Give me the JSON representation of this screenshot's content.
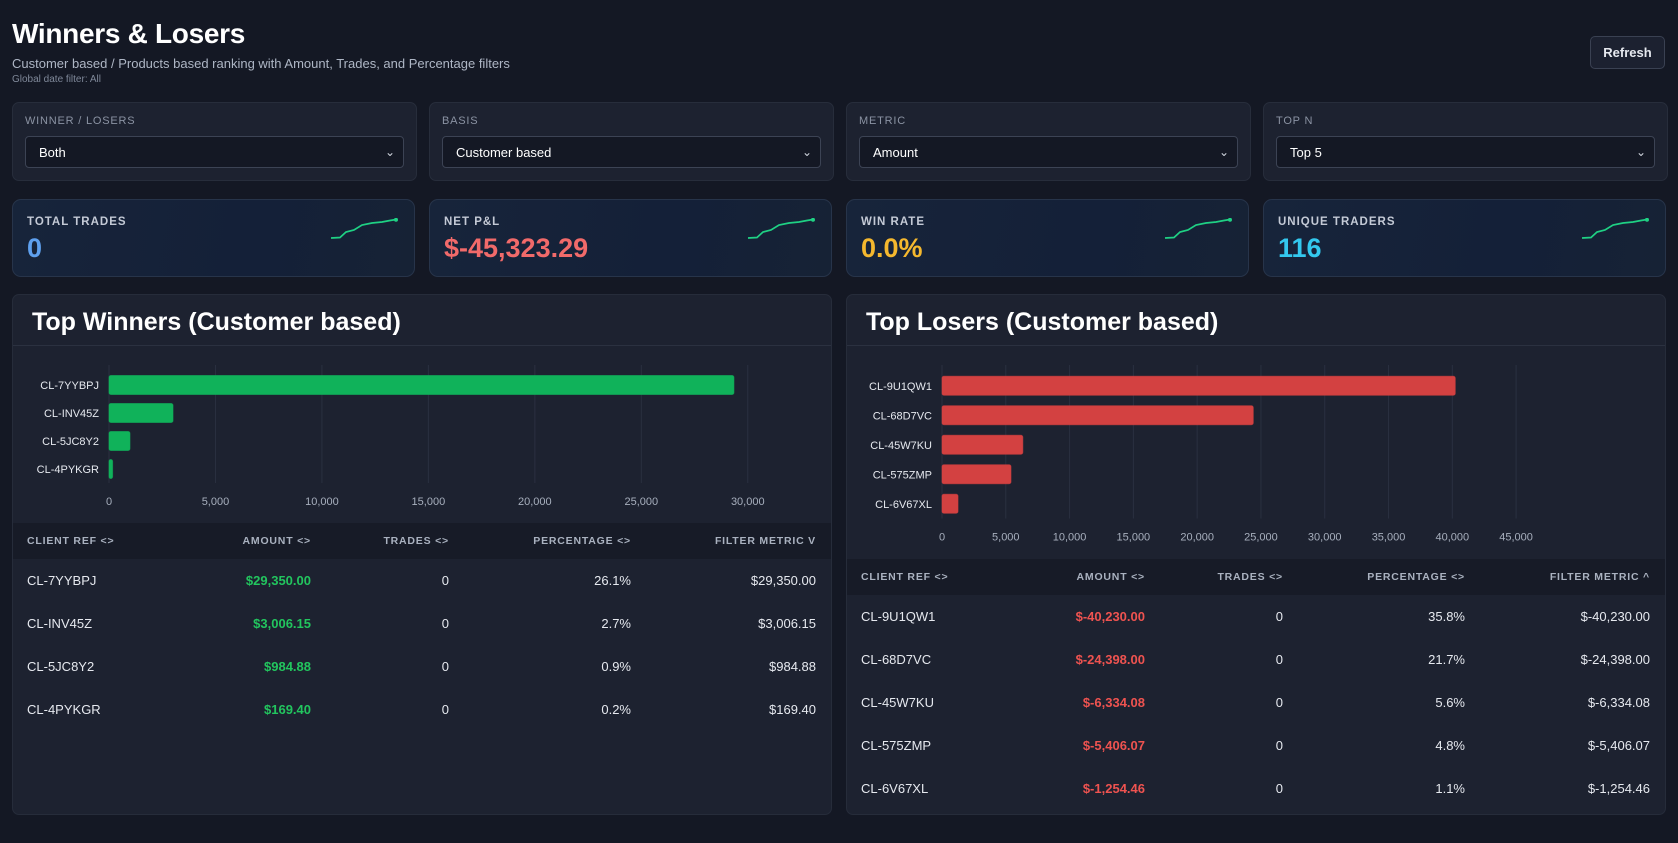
{
  "header": {
    "title": "Winners & Losers",
    "subtitle": "Customer based / Products based ranking with Amount, Trades, and Percentage filters",
    "date_filter": "Global date filter: All",
    "refresh_label": "Refresh"
  },
  "filters": [
    {
      "label": "WINNER / LOSERS",
      "value": "Both"
    },
    {
      "label": "BASIS",
      "value": "Customer based"
    },
    {
      "label": "METRIC",
      "value": "Amount"
    },
    {
      "label": "TOP N",
      "value": "Top 5"
    }
  ],
  "kpis": [
    {
      "label": "TOTAL TRADES",
      "value": "0",
      "color": "#5ea0ee"
    },
    {
      "label": "NET P&L",
      "value": "$-45,323.29",
      "color": "#f16a6a"
    },
    {
      "label": "WIN RATE",
      "value": "0.0%",
      "color": "#f5b82e"
    },
    {
      "label": "UNIQUE TRADERS",
      "value": "116",
      "color": "#33c8ee"
    }
  ],
  "colors": {
    "positive": "#22c55e",
    "negative": "#ef5350",
    "bar_green": "#10b25a",
    "bar_red": "#d34141",
    "sparkline": "#1fd184"
  },
  "winners": {
    "title": "Top Winners (Customer based)",
    "columns": [
      "CLIENT REF <>",
      "AMOUNT <>",
      "TRADES <>",
      "PERCENTAGE <>",
      "FILTER METRIC V"
    ],
    "rows": [
      {
        "client": "CL-7YYBPJ",
        "amount": "$29,350.00",
        "trades": "0",
        "percentage": "26.1%",
        "metric": "$29,350.00"
      },
      {
        "client": "CL-INV45Z",
        "amount": "$3,006.15",
        "trades": "0",
        "percentage": "2.7%",
        "metric": "$3,006.15"
      },
      {
        "client": "CL-5JC8Y2",
        "amount": "$984.88",
        "trades": "0",
        "percentage": "0.9%",
        "metric": "$984.88"
      },
      {
        "client": "CL-4PYKGR",
        "amount": "$169.40",
        "trades": "0",
        "percentage": "0.2%",
        "metric": "$169.40"
      }
    ]
  },
  "losers": {
    "title": "Top Losers (Customer based)",
    "columns": [
      "CLIENT REF <>",
      "AMOUNT <>",
      "TRADES <>",
      "PERCENTAGE <>",
      "FILTER METRIC ^"
    ],
    "rows": [
      {
        "client": "CL-9U1QW1",
        "amount": "$-40,230.00",
        "trades": "0",
        "percentage": "35.8%",
        "metric": "$-40,230.00"
      },
      {
        "client": "CL-68D7VC",
        "amount": "$-24,398.00",
        "trades": "0",
        "percentage": "21.7%",
        "metric": "$-24,398.00"
      },
      {
        "client": "CL-45W7KU",
        "amount": "$-6,334.08",
        "trades": "0",
        "percentage": "5.6%",
        "metric": "$-6,334.08"
      },
      {
        "client": "CL-575ZMP",
        "amount": "$-5,406.07",
        "trades": "0",
        "percentage": "4.8%",
        "metric": "$-5,406.07"
      },
      {
        "client": "CL-6V67XL",
        "amount": "$-1,254.46",
        "trades": "0",
        "percentage": "1.1%",
        "metric": "$-1,254.46"
      }
    ]
  },
  "chart_data": [
    {
      "type": "bar",
      "orientation": "horizontal",
      "categories": [
        "CL-7YYBPJ",
        "CL-INV45Z",
        "CL-5JC8Y2",
        "CL-4PYKGR"
      ],
      "values": [
        29350,
        3006.15,
        984.88,
        169.4
      ],
      "xlim": [
        0,
        32500
      ],
      "xticks": [
        0,
        5000,
        10000,
        15000,
        20000,
        25000,
        30000
      ],
      "xtick_labels": [
        "0",
        "5,000",
        "10,000",
        "15,000",
        "20,000",
        "25,000",
        "30,000"
      ],
      "grid": true
    },
    {
      "type": "bar",
      "orientation": "horizontal",
      "categories": [
        "CL-9U1QW1",
        "CL-68D7VC",
        "CL-45W7KU",
        "CL-575ZMP",
        "CL-6V67XL"
      ],
      "values": [
        40230,
        24398,
        6334.08,
        5406.07,
        1254.46
      ],
      "xlim": [
        0,
        47500
      ],
      "xticks": [
        0,
        5000,
        10000,
        15000,
        20000,
        25000,
        30000,
        35000,
        40000,
        45000
      ],
      "xtick_labels": [
        "0",
        "5,000",
        "10,000",
        "15,000",
        "20,000",
        "25,000",
        "30,000",
        "35,000",
        "40,000",
        "45,000"
      ],
      "grid": true
    }
  ]
}
